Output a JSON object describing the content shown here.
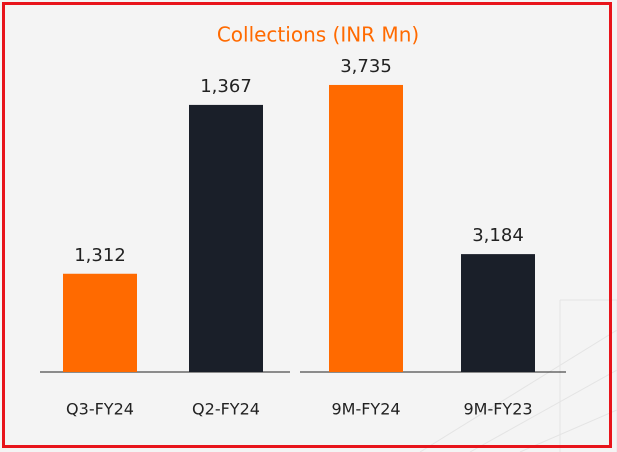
{
  "chart_data": [
    {
      "type": "bar",
      "title": "Collections (INR Mn)",
      "categories": [
        "Q3-FY24",
        "Q2-FY24"
      ],
      "values": [
        1312,
        1367
      ],
      "value_labels": [
        "1,312",
        "1,367"
      ],
      "colors": [
        "#ff6a00",
        "#1a1f29"
      ],
      "ylim": [
        1280,
        1380
      ]
    },
    {
      "type": "bar",
      "categories": [
        "9M-FY24",
        "9M-FY23"
      ],
      "values": [
        3735,
        3184
      ],
      "value_labels": [
        "3,735",
        "3,184"
      ],
      "colors": [
        "#ff6a00",
        "#1a1f29"
      ],
      "ylim": [
        2800,
        3800
      ]
    }
  ]
}
